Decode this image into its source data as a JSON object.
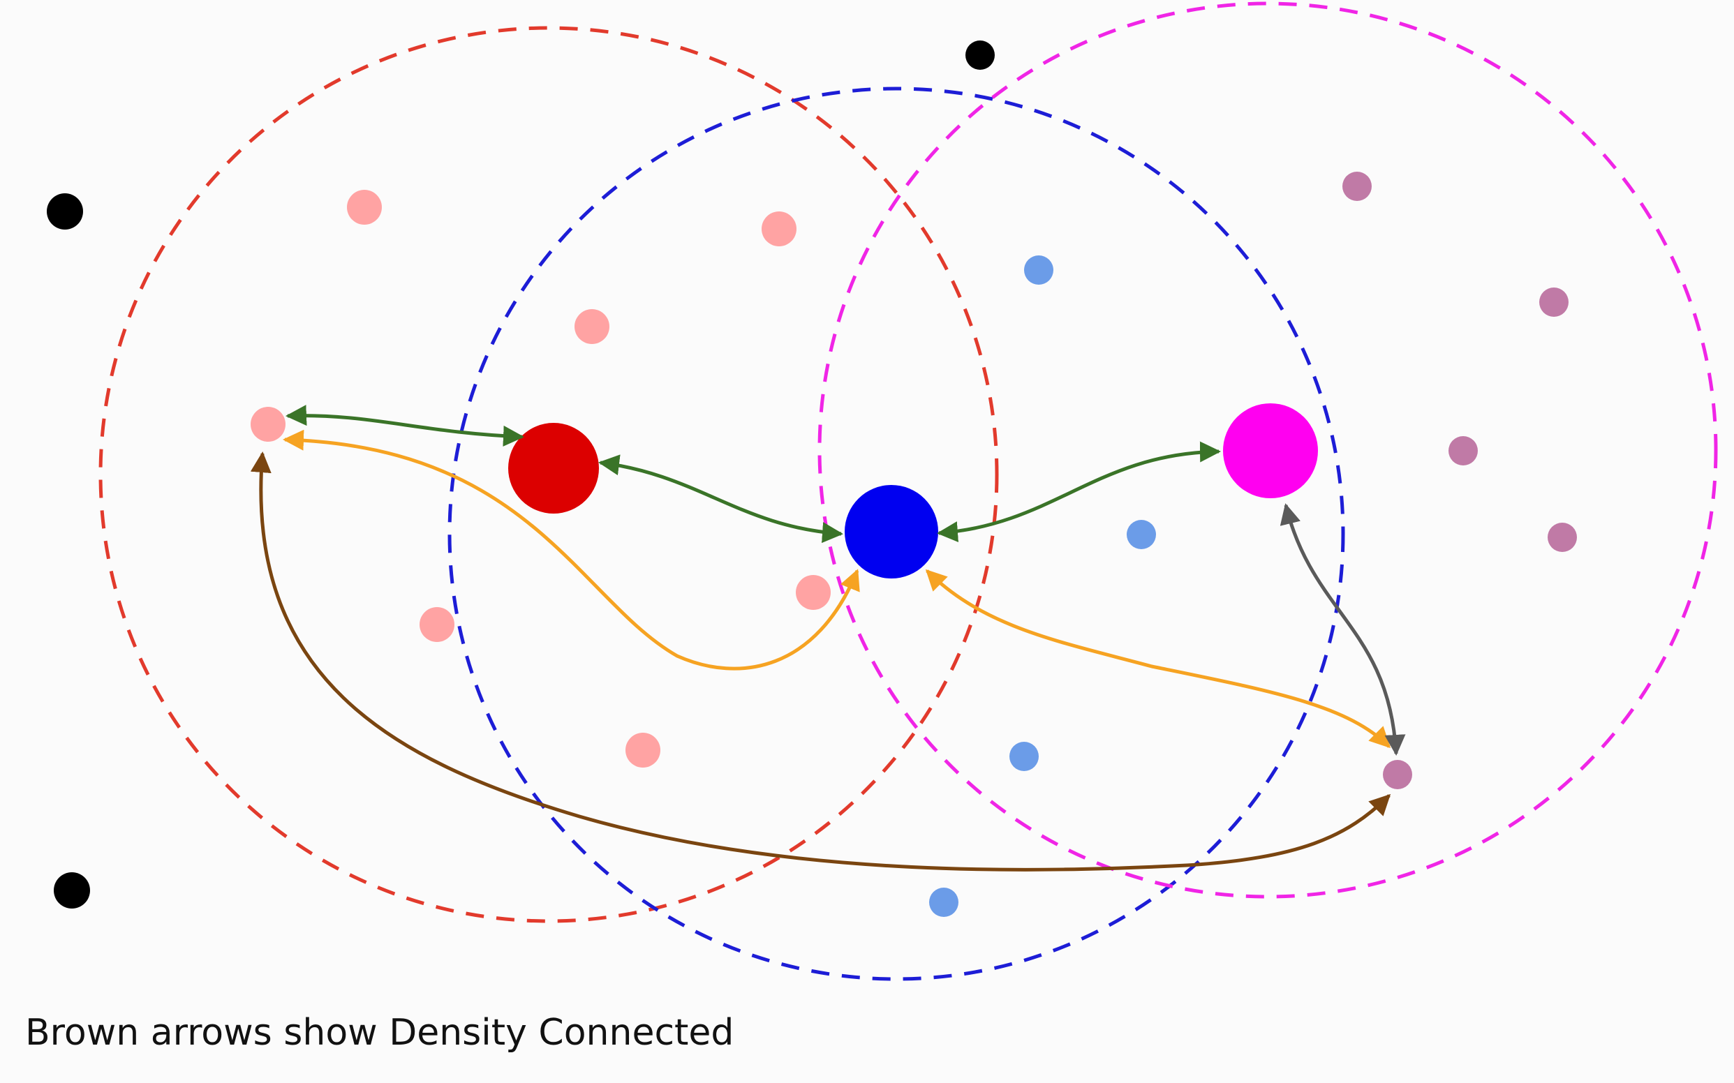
{
  "caption": "Brown arrows show Density Connected",
  "colors": {
    "red_cluster_core": "#dc0000",
    "red_cluster_point": "#ffa3a3",
    "red_circle": "#e23a2c",
    "blue_cluster_core": "#0000f0",
    "blue_cluster_point": "#6b9ce8",
    "blue_circle": "#1d1dd6",
    "magenta_cluster_core": "#ff00f0",
    "magenta_cluster_point": "#c07aa6",
    "magenta_circle": "#f025e6",
    "noise_point": "#000000",
    "green_arrow": "#3a7428",
    "orange_arrow": "#f6a322",
    "brown_arrow": "#7a4510",
    "gray_arrow": "#5a5a5a"
  }
}
